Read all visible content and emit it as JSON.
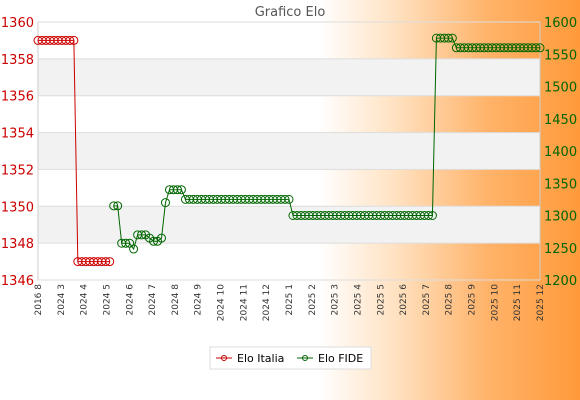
{
  "colors": {
    "italia": "#cc0000",
    "fide": "#006600",
    "left_axis": "#cc0000",
    "right_axis": "#006600",
    "band": "#f2f2f2"
  },
  "chart_data": {
    "type": "line",
    "title": "Grafico Elo",
    "grid": true,
    "legend_position": "bottom",
    "x_tick_labels": [
      "2016 8",
      "2024 3",
      "2024 4",
      "2024 5",
      "2024 6",
      "2024 7",
      "2024 8",
      "2024 9",
      "2024 10",
      "2024 11",
      "2024 12",
      "2025 1",
      "2025 2",
      "2025 3",
      "2025 4",
      "2025 5",
      "2025 6",
      "2025 7",
      "2025 8",
      "2025 9",
      "2025 10",
      "2025 11",
      "2025 12"
    ],
    "left_axis": {
      "ylim": [
        1346,
        1360
      ],
      "ticks": [
        1346,
        1348,
        1350,
        1352,
        1354,
        1356,
        1358,
        1360
      ],
      "color": "#cc0000"
    },
    "right_axis": {
      "ylim": [
        1200,
        1600
      ],
      "ticks": [
        1200,
        1250,
        1300,
        1350,
        1400,
        1450,
        1500,
        1550,
        1600
      ],
      "color": "#006600"
    },
    "series": [
      {
        "name": "Elo Italia",
        "axis": "left",
        "color": "#cc0000",
        "x": [
          0,
          1,
          2,
          3,
          4,
          5,
          6,
          7,
          8,
          9,
          10,
          11,
          12,
          13,
          14,
          15,
          16,
          17,
          18
        ],
        "values": [
          1359,
          1359,
          1359,
          1359,
          1359,
          1359,
          1359,
          1359,
          1359,
          1359,
          1347,
          1347,
          1347,
          1347,
          1347,
          1347,
          1347,
          1347,
          1347
        ]
      },
      {
        "name": "Elo FIDE",
        "axis": "right",
        "color": "#006600",
        "x": [
          19,
          20,
          21,
          22,
          23,
          24,
          25,
          26,
          27,
          28,
          29,
          30,
          31,
          32,
          33,
          34,
          35,
          36,
          37,
          38,
          39,
          40,
          41,
          42,
          43,
          44,
          45,
          46,
          47,
          48,
          49,
          50,
          51,
          52,
          53,
          54,
          55,
          56,
          57,
          58,
          59,
          60,
          61,
          62,
          63,
          64,
          65,
          66,
          67,
          68,
          69,
          70,
          71,
          72,
          73,
          74,
          75,
          76,
          77,
          78,
          79,
          80,
          81,
          82,
          83,
          84,
          85,
          86,
          87,
          88,
          89,
          90,
          91,
          92,
          93,
          94,
          95,
          96,
          97,
          98,
          99
        ],
        "values": [
          1315,
          1315,
          1257,
          1257,
          1257,
          1248,
          1270,
          1270,
          1270,
          1265,
          1260,
          1260,
          1265,
          1320,
          1340,
          1340,
          1340,
          1340,
          1325,
          1325,
          1325,
          1325,
          1325,
          1325,
          1325,
          1325,
          1325,
          1325,
          1325,
          1325,
          1325,
          1325,
          1325,
          1325,
          1325,
          1325,
          1325,
          1325,
          1325,
          1325,
          1325,
          1325,
          1325,
          1325,
          1325,
          1300,
          1300,
          1300,
          1300,
          1300,
          1300,
          1300,
          1300,
          1300,
          1300,
          1300,
          1300,
          1300,
          1300,
          1300,
          1300,
          1300,
          1300,
          1300,
          1300,
          1300,
          1300,
          1300,
          1300,
          1300,
          1300,
          1300,
          1300,
          1300,
          1300,
          1300,
          1300,
          1300,
          1300,
          1300,
          1300
        ]
      }
    ],
    "fide_tail": {
      "x": [
        100,
        101,
        102,
        103,
        104,
        105,
        106,
        107,
        108,
        109,
        110,
        111,
        112,
        113,
        114,
        115,
        116,
        117,
        118,
        119,
        120,
        121,
        122,
        123,
        124,
        125,
        126
      ],
      "values": [
        1575,
        1575,
        1575,
        1575,
        1575,
        1560,
        1560,
        1560,
        1560,
        1560,
        1560,
        1560,
        1560,
        1560,
        1560,
        1560,
        1560,
        1560,
        1560,
        1560,
        1560,
        1560,
        1560,
        1560,
        1560,
        1560,
        1560
      ]
    },
    "x_range": [
      0,
      126
    ]
  }
}
